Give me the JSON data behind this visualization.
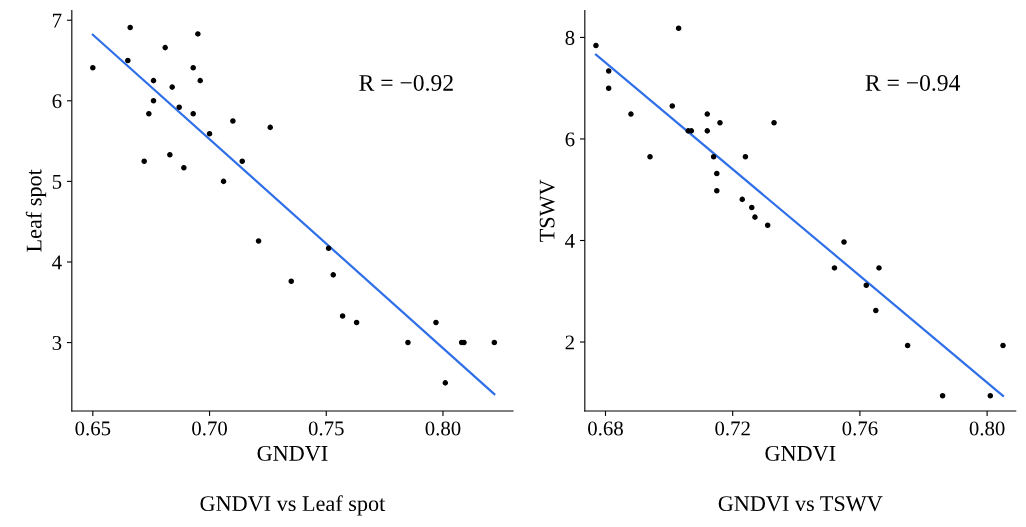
{
  "chart_data": [
    {
      "type": "scatter",
      "title": "GNDVI vs Leaf spot",
      "xlabel": "GNDVI",
      "ylabel": "Leaf spot",
      "annotations": [
        "R = −0.92"
      ],
      "xlim": [
        0.641,
        0.83
      ],
      "xticks": [
        {
          "value": 0.65,
          "label": "0.65"
        },
        {
          "value": 0.7,
          "label": "0.70"
        },
        {
          "value": 0.75,
          "label": "0.75"
        },
        {
          "value": 0.8,
          "label": "0.80"
        }
      ],
      "ylim": [
        2.15,
        7.12
      ],
      "yticks": [
        3,
        4,
        5,
        6,
        7
      ],
      "grid": false,
      "series": [
        {
          "color": "#000000",
          "marker": "circle",
          "x": [
            0.65,
            0.666,
            0.665,
            0.695,
            0.681,
            0.693,
            0.696,
            0.676,
            0.684,
            0.676,
            0.687,
            0.674,
            0.693,
            0.71,
            0.726,
            0.7,
            0.683,
            0.714,
            0.672,
            0.689,
            0.706,
            0.721,
            0.735,
            0.751,
            0.753,
            0.757,
            0.763,
            0.785,
            0.797,
            0.801,
            0.808,
            0.809,
            0.822
          ],
          "values": [
            6.41,
            6.91,
            6.5,
            6.83,
            6.66,
            6.41,
            6.25,
            6.25,
            6.17,
            6.0,
            5.92,
            5.84,
            5.84,
            5.75,
            5.67,
            5.59,
            5.33,
            5.25,
            5.25,
            5.17,
            5.0,
            4.26,
            3.76,
            4.17,
            3.84,
            3.33,
            3.25,
            3.0,
            3.25,
            2.5,
            3.0,
            3.0,
            3.0
          ]
        },
        {
          "type": "line",
          "color": "#2f6fe8",
          "x": [
            0.65,
            0.822
          ],
          "values": [
            6.82,
            2.36
          ]
        }
      ]
    },
    {
      "type": "scatter",
      "title": "GNDVI vs TSWV",
      "xlabel": "GNDVI",
      "ylabel": "TSWV",
      "annotations": [
        "R = −0.94"
      ],
      "xlim": [
        0.6735,
        0.809
      ],
      "xticks": [
        {
          "value": 0.68,
          "label": "0.68"
        },
        {
          "value": 0.72,
          "label": "0.72"
        },
        {
          "value": 0.76,
          "label": "0.76"
        },
        {
          "value": 0.8,
          "label": "0.80"
        }
      ],
      "ylim": [
        0.64,
        8.53
      ],
      "yticks": [
        2,
        4,
        6,
        8
      ],
      "grid": false,
      "series": [
        {
          "color": "#000000",
          "marker": "circle",
          "x": [
            0.677,
            0.703,
            0.681,
            0.681,
            0.688,
            0.701,
            0.712,
            0.716,
            0.733,
            0.706,
            0.707,
            0.712,
            0.694,
            0.714,
            0.724,
            0.715,
            0.715,
            0.723,
            0.726,
            0.727,
            0.731,
            0.755,
            0.752,
            0.766,
            0.762,
            0.765,
            0.775,
            0.805,
            0.786,
            0.801
          ],
          "values": [
            7.84,
            8.18,
            7.34,
            7.0,
            6.49,
            6.65,
            6.49,
            6.32,
            6.32,
            6.16,
            6.16,
            6.16,
            5.65,
            5.65,
            5.65,
            5.32,
            4.98,
            4.81,
            4.65,
            4.46,
            4.3,
            3.97,
            3.46,
            3.46,
            3.12,
            2.62,
            1.93,
            1.93,
            0.94,
            0.94
          ]
        },
        {
          "type": "line",
          "color": "#2f6fe8",
          "x": [
            0.677,
            0.805
          ],
          "values": [
            7.66,
            0.94
          ]
        }
      ]
    }
  ]
}
